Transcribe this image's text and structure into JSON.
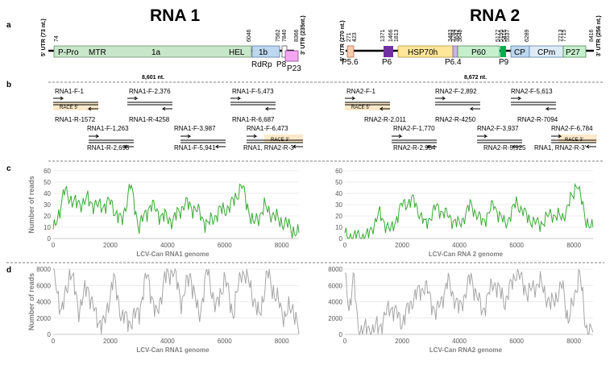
{
  "panels": {
    "a": "a",
    "b": "b",
    "c": "c",
    "d": "d"
  },
  "rna1": {
    "title": "RNA 1",
    "utr5": "5' UTR (73 nt.)",
    "utr3": "3' UTR (235nt.)",
    "length": "8,601 nt.",
    "ticks": [
      "74",
      "6046",
      "7562",
      "7840",
      "8366"
    ],
    "orf1a_labels": [
      "P-Pro",
      "MTR",
      "1a",
      "HEL"
    ],
    "genes": [
      "1b",
      "RdRp",
      "P8",
      "P23"
    ],
    "primers_f": [
      "RNA1-F-1",
      "RNA1-F-2,376",
      "RNA1-F-5,473",
      "RNA1-F-1,263",
      "RNA1-F-3,987",
      "RNA1-F-6,473"
    ],
    "primers_r": [
      "RNA1-R-1572",
      "RNA1-R-4258",
      "RNA1-R-6,687",
      "RNA1-R-2,695",
      "RNA1-F-5,941",
      "RNA1, RNA2-R-3'"
    ],
    "race5": "RACE 5'",
    "race3": "RACE 3'"
  },
  "rna2": {
    "title": "RNA 2",
    "utr5": "5' UTR (270 nt.)",
    "utr3": "3' UTR (256 nt.)",
    "length": "8,672 nt.",
    "ticks": [
      "271",
      "423",
      "1371",
      "1466",
      "1813",
      "3483",
      "3784",
      "3642",
      "3648",
      "5177",
      "5195",
      "5416",
      "5537",
      "6289",
      "7713",
      "7715",
      "8416"
    ],
    "genes": [
      "P5.6",
      "P6",
      "HSP70h",
      "P6.4",
      "P60",
      "P9",
      "CP",
      "CPm",
      "P27"
    ],
    "primers_f": [
      "RNA2-F-1",
      "RNA2-F-2,892",
      "RNA2-F-5,613",
      "RNA2-F-1,770",
      "RNA2-F-3,937",
      "RNA2-F-6,784"
    ],
    "primers_r": [
      "RNA2-R-2,011",
      "RNA2-R-4250",
      "RNA2-R-7094",
      "RNA2-R-2,954",
      "RNA2-R-5,925",
      "RNA1, RNA2-R-3'"
    ],
    "race5": "RACE 5'",
    "race3": "RACE 3'"
  },
  "colors": {
    "orf1a": "#c8e6c9",
    "rdrp": "#bdd7ee",
    "p8": "#ffffff",
    "p23": "#f4a6f0",
    "p56": "#f8cbad",
    "p6": "#7030a0",
    "hsp70": "#ffe699",
    "p64": "#c9b3e6",
    "p60": "#c6efce",
    "p9": "#00b050",
    "cp": "#bdd7ee",
    "cpm": "#ddebf7",
    "p27": "#c6efce",
    "race": "#fde9c9",
    "line_chart": "#3aaa35",
    "area_chart": "#a6a6a6"
  },
  "chart_data": [
    {
      "type": "line",
      "title": "",
      "xlabel": "LCV-Can RNA1 genome",
      "ylabel": "Number of reads",
      "ylim": [
        0,
        60
      ],
      "xlim": [
        0,
        8601
      ],
      "x_ticks": [
        0,
        2000,
        4000,
        6000,
        8000
      ],
      "y_ticks": [
        0,
        10,
        20,
        30,
        40,
        50,
        60
      ],
      "x": [
        0,
        400,
        800,
        1200,
        1600,
        2000,
        2400,
        2700,
        3000,
        3400,
        3800,
        4200,
        4600,
        5000,
        5400,
        5800,
        6200,
        6600,
        7000,
        7400,
        7800,
        8200,
        8600
      ],
      "values": [
        5,
        42,
        30,
        34,
        28,
        32,
        14,
        48,
        10,
        30,
        20,
        16,
        31,
        26,
        12,
        24,
        28,
        47,
        12,
        28,
        18,
        12,
        3
      ]
    },
    {
      "type": "line",
      "title": "",
      "xlabel": "LCV-Can RNA 2 genome",
      "ylabel": "",
      "ylim": [
        0,
        60
      ],
      "xlim": [
        0,
        8672
      ],
      "x_ticks": [
        0,
        2000,
        4000,
        6000,
        8000
      ],
      "y_ticks": [
        0,
        10,
        20,
        30,
        40,
        50,
        60
      ],
      "x": [
        0,
        400,
        800,
        1200,
        1600,
        2000,
        2400,
        2800,
        3200,
        3600,
        4000,
        4400,
        4800,
        5200,
        5600,
        6000,
        6400,
        6800,
        7200,
        7600,
        8000,
        8100,
        8400,
        8672
      ],
      "values": [
        2,
        2,
        2,
        22,
        6,
        30,
        34,
        12,
        28,
        20,
        12,
        30,
        14,
        30,
        12,
        32,
        18,
        12,
        22,
        18,
        40,
        52,
        18,
        8
      ]
    },
    {
      "type": "area",
      "title": "",
      "xlabel": "LCV-Can RNA1 genome",
      "ylabel": "Number of reads",
      "ylim": [
        0,
        8000
      ],
      "xlim": [
        0,
        8601
      ],
      "x_ticks": [
        0,
        2000,
        4000,
        6000,
        8000
      ],
      "y_ticks": [
        0,
        2000,
        4000,
        6000,
        8000
      ],
      "x": [
        0,
        300,
        600,
        900,
        1200,
        1500,
        1800,
        2100,
        2400,
        2700,
        3000,
        3300,
        3600,
        3900,
        4200,
        4500,
        4800,
        5100,
        5400,
        5700,
        6000,
        6300,
        6600,
        6900,
        7200,
        7500,
        7800,
        8100,
        8400,
        8601
      ],
      "values": [
        8000,
        2500,
        8000,
        3000,
        6000,
        2000,
        1200,
        7000,
        2200,
        1500,
        2800,
        7500,
        2000,
        6800,
        8000,
        4000,
        7500,
        2000,
        8000,
        3000,
        7000,
        2500,
        8000,
        6000,
        2000,
        7500,
        4500,
        2200,
        3500,
        200
      ]
    },
    {
      "type": "area",
      "title": "",
      "xlabel": "LCV-Can RNA2 genome",
      "ylabel": "",
      "ylim": [
        0,
        8000
      ],
      "xlim": [
        0,
        8672
      ],
      "x_ticks": [
        0,
        2000,
        4000,
        6000,
        8000
      ],
      "y_ticks": [
        0,
        2000,
        4000,
        6000,
        8000
      ],
      "x": [
        0,
        150,
        300,
        450,
        800,
        1200,
        1600,
        2000,
        2400,
        2800,
        3200,
        3600,
        4000,
        4400,
        4800,
        5200,
        5600,
        6000,
        6400,
        6800,
        7200,
        7600,
        7800,
        8000,
        8200,
        8400,
        8672
      ],
      "values": [
        7000,
        3000,
        7500,
        800,
        500,
        900,
        3500,
        1500,
        4500,
        6000,
        2500,
        6500,
        3000,
        7000,
        2800,
        6500,
        4000,
        7800,
        5000,
        6500,
        3500,
        6000,
        1800,
        4000,
        8000,
        1000,
        400
      ]
    }
  ]
}
